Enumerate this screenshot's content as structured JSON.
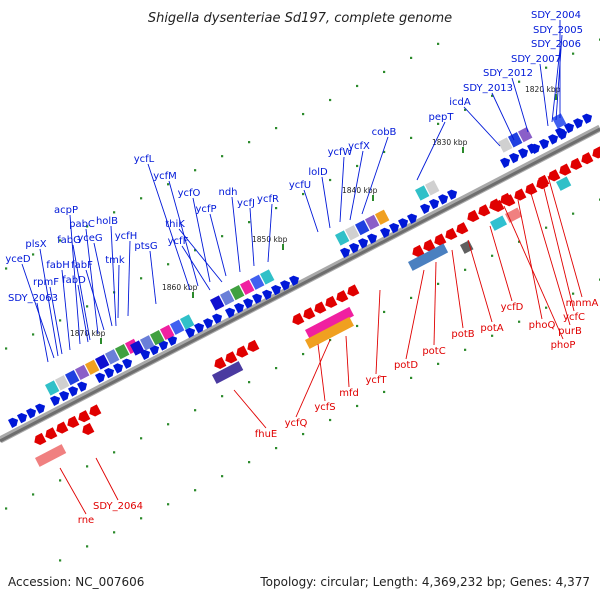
{
  "title": "Shigella dysenteriae Sd197, complete genome",
  "footer": {
    "accession": "Accession: NC_007606",
    "summary": "Topology: circular; Length: 4,369,232 bp; Genes: 4,377"
  },
  "colors": {
    "forward": "#0018d8",
    "reverse": "#e00000",
    "backbone": "#808080",
    "tick": "#2b8a2b"
  },
  "ticks": [
    "1820 kbp",
    "1830 kbp",
    "1840 kbp",
    "1850 kbp",
    "1860 kbp",
    "1870 kbp"
  ],
  "forward_genes": [
    "SDY_2004",
    "SDY_2005",
    "SDY_2006",
    "SDY_2007",
    "SDY_2012",
    "SDY_2013",
    "icdA",
    "pepT",
    "cobB",
    "ycfX",
    "ycfW",
    "lolD",
    "ycfU",
    "ycfR",
    "ycfJ",
    "ndh",
    "ycfP",
    "ycfO",
    "ycfM",
    "ycfL",
    "thiK",
    "ycfF",
    "ptsG",
    "ycfH",
    "holB",
    "tmk",
    "yceG",
    "fabF",
    "pabC",
    "fabG",
    "acpP",
    "fabD",
    "fabH",
    "plsX",
    "rpmF",
    "yceD",
    "SDY_2063"
  ],
  "reverse_genes": [
    "mnmA",
    "ycfC",
    "purB",
    "phoQ",
    "phoP",
    "ycfD",
    "potA",
    "potB",
    "potC",
    "potD",
    "ycfT",
    "mfd",
    "ycfS",
    "ycfQ",
    "fhuE",
    "SDY_2064",
    "rne"
  ]
}
